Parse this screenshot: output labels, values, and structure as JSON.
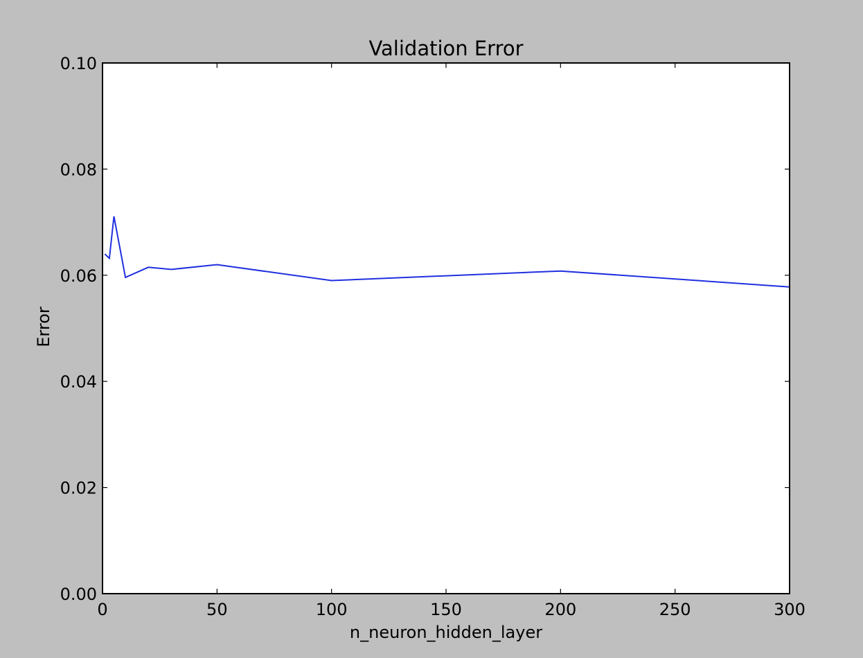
{
  "colors": {
    "figure_background": "#bfbfbf",
    "plot_background": "#ffffff",
    "series_line": "#1f2fe0",
    "axes": "#000000"
  },
  "chart_data": {
    "type": "line",
    "title": "Validation Error",
    "xlabel": "n_neuron_hidden_layer",
    "ylabel": "Error",
    "xlim": [
      0,
      300
    ],
    "ylim": [
      0,
      0.1
    ],
    "xticks": [
      0,
      50,
      100,
      150,
      200,
      250,
      300
    ],
    "xtick_labels": [
      "0",
      "50",
      "100",
      "150",
      "200",
      "250",
      "300"
    ],
    "yticks": [
      0,
      0.02,
      0.04,
      0.06,
      0.08,
      0.1
    ],
    "ytick_labels": [
      "0.00",
      "0.02",
      "0.04",
      "0.06",
      "0.08",
      "0.10"
    ],
    "grid": false,
    "legend": "none",
    "series": [
      {
        "x": [
          1,
          3,
          5,
          10,
          20,
          30,
          50,
          100,
          200,
          300
        ],
        "y": [
          0.064,
          0.0632,
          0.0711,
          0.0596,
          0.0615,
          0.0611,
          0.062,
          0.059,
          0.0608,
          0.0578
        ]
      }
    ]
  }
}
